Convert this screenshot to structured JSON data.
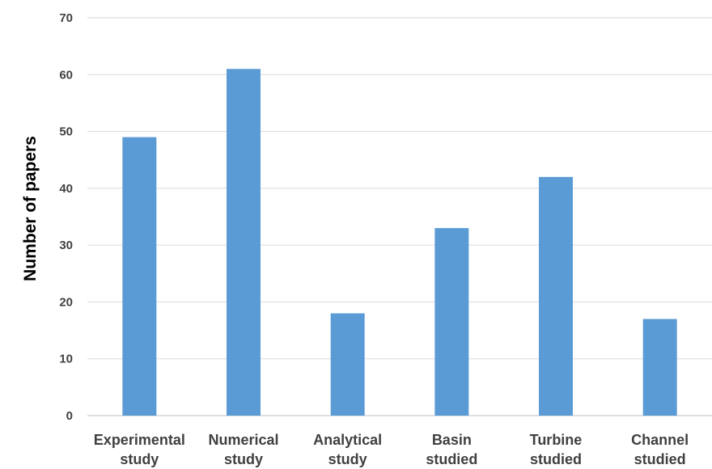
{
  "chart_data": {
    "type": "bar",
    "title": "",
    "xlabel": "",
    "ylabel": "Number of papers",
    "ylim": [
      0,
      70
    ],
    "yticks": [
      0,
      10,
      20,
      30,
      40,
      50,
      60,
      70
    ],
    "grid": true,
    "legend": "none",
    "categories": [
      [
        "Experimental",
        "study"
      ],
      [
        "Numerical",
        "study"
      ],
      [
        "Analytical",
        "study"
      ],
      [
        "Basin",
        "studied"
      ],
      [
        "Turbine",
        "studied"
      ],
      [
        "Channel",
        "studied"
      ]
    ],
    "values": [
      49,
      61,
      18,
      33,
      42,
      17
    ],
    "colors": {
      "bar": "#5b9bd5",
      "grid": "#d9d9d9",
      "text": "#404040"
    }
  }
}
